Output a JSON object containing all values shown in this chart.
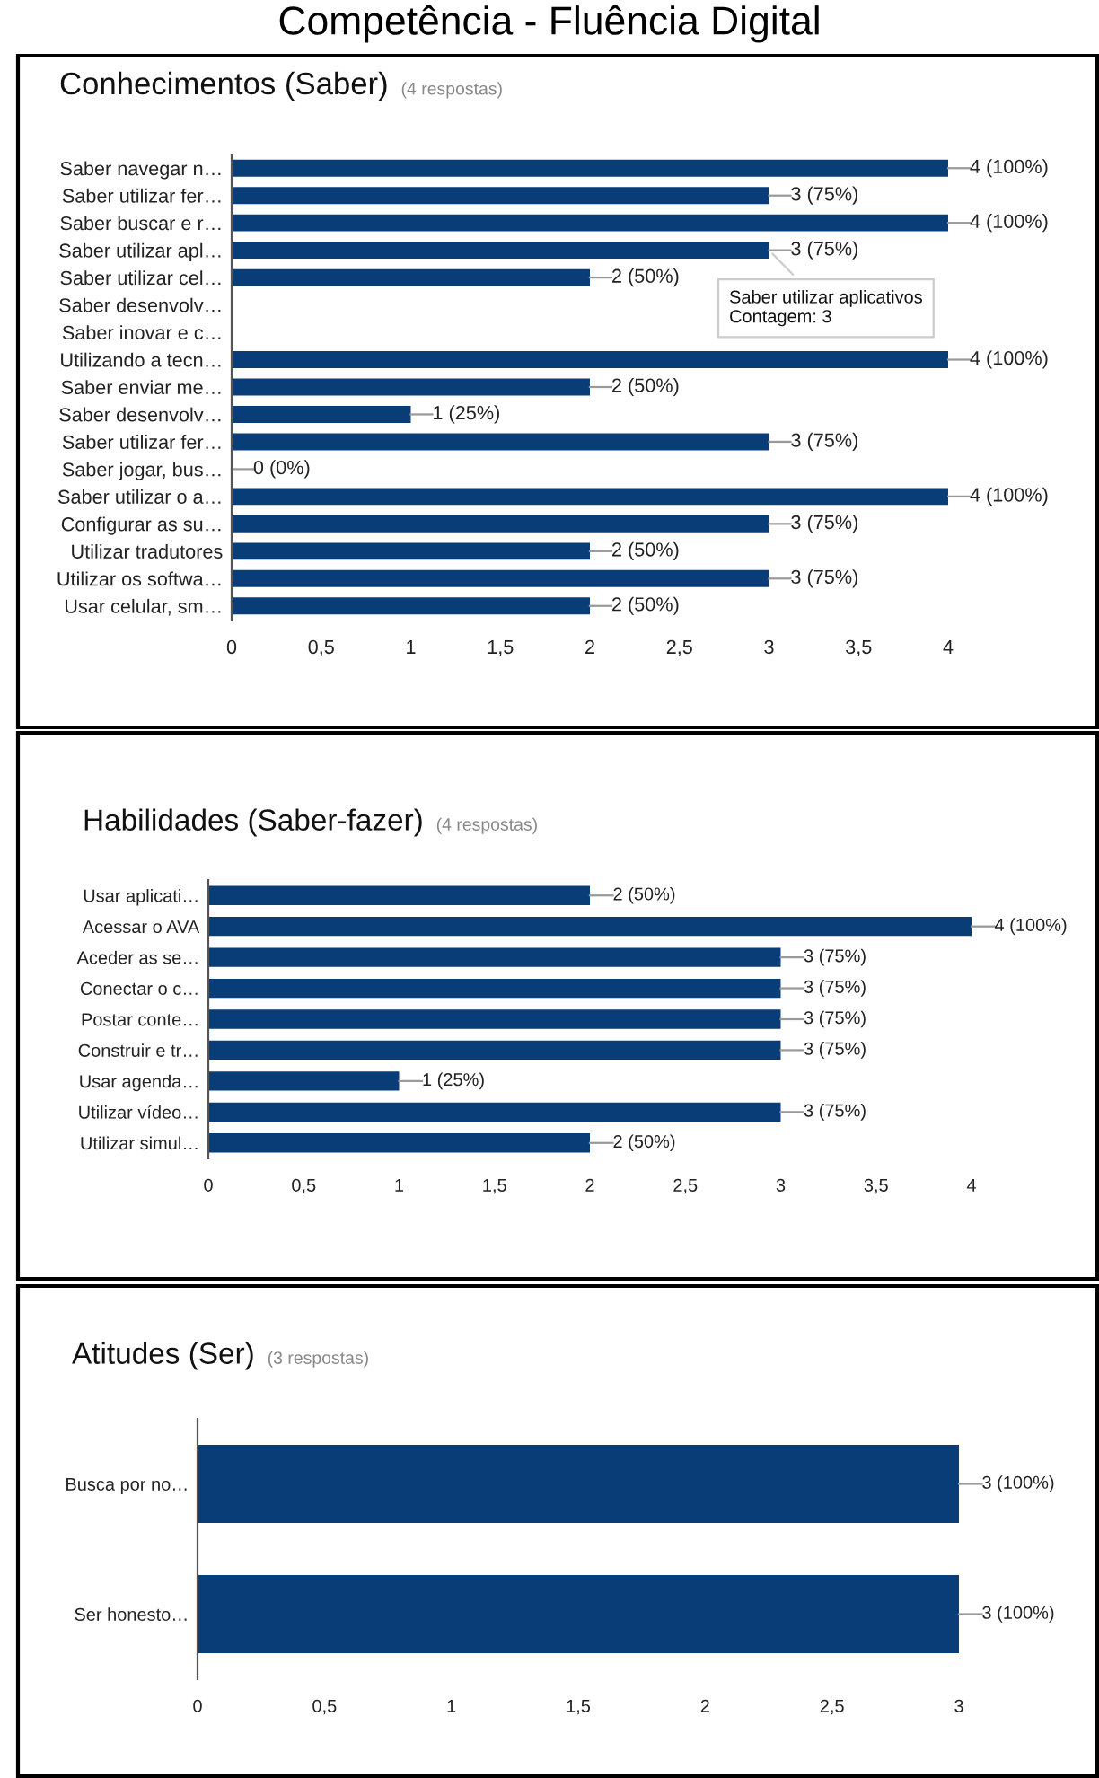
{
  "chart_data": [
    {
      "type": "bar",
      "orientation": "horizontal",
      "title": "Conhecimentos (Saber)",
      "subtitle": "(4 respostas)",
      "categories": [
        "Saber navegar n…",
        "Saber utilizar fer…",
        "Saber buscar e r…",
        "Saber utilizar apl…",
        "Saber utilizar cel…",
        "Saber desenvolv…",
        "Saber inovar e c…",
        "Utilizando a tecn…",
        "Saber enviar me…",
        "Saber desenvolv…",
        "Saber utilizar fer…",
        "Saber jogar, bus…",
        "Saber utilizar o a…",
        "Configurar as su…",
        "Utilizar tradutores",
        "Utilizar os softwa…",
        "Usar celular, sm…"
      ],
      "values": [
        4,
        3,
        4,
        3,
        2,
        null,
        null,
        4,
        2,
        1,
        3,
        0,
        4,
        3,
        2,
        3,
        2
      ],
      "value_labels": [
        "4 (100%)",
        "3 (75%)",
        "4 (100%)",
        "3 (75%)",
        "2 (50%)",
        null,
        null,
        "4 (100%)",
        "2 (50%)",
        "1 (25%)",
        "3 (75%)",
        "0 (0%)",
        "4 (100%)",
        "3 (75%)",
        "2 (50%)",
        "3 (75%)",
        "2 (50%)"
      ],
      "color": "#083d77",
      "xlim": [
        0,
        4
      ],
      "xticks": [
        0,
        {
          "value": 0.5,
          "label": "0,5"
        },
        1,
        {
          "value": 1.5,
          "label": "1,5"
        },
        2,
        {
          "value": 2.5,
          "label": "2,5"
        },
        3,
        {
          "value": 3.5,
          "label": "3,5"
        },
        4
      ],
      "grid": false,
      "annotations": [
        "Competência - Fluência Digital",
        {
          "text": "Saber utilizar aplicativos\nContagem: 3",
          "x": 3,
          "y": "Saber utilizar apl…"
        }
      ]
    },
    {
      "type": "bar",
      "orientation": "horizontal",
      "title": "Habilidades (Saber-fazer)",
      "subtitle": "(4 respostas)",
      "categories": [
        "Usar aplicati…",
        "Acessar o AVA",
        "Aceder as se…",
        "Conectar o c…",
        "Postar conte…",
        "Construir e tr…",
        "Usar agenda…",
        "Utilizar vídeo…",
        "Utilizar simul…"
      ],
      "values": [
        2,
        4,
        3,
        3,
        3,
        3,
        1,
        3,
        2
      ],
      "value_labels": [
        "2 (50%)",
        "4 (100%)",
        "3 (75%)",
        "3 (75%)",
        "3 (75%)",
        "3 (75%)",
        "1 (25%)",
        "3 (75%)",
        "2 (50%)"
      ],
      "color": "#083d77",
      "xlim": [
        0,
        4
      ],
      "xticks": [
        0,
        {
          "value": 0.5,
          "label": "0,5"
        },
        1,
        {
          "value": 1.5,
          "label": "1,5"
        },
        2,
        {
          "value": 2.5,
          "label": "2,5"
        },
        3,
        {
          "value": 3.5,
          "label": "3,5"
        },
        4
      ],
      "grid": false
    },
    {
      "type": "bar",
      "orientation": "horizontal",
      "title": "Atitudes (Ser)",
      "subtitle": "(3 respostas)",
      "categories": [
        "Busca por no…",
        "Ser honesto…"
      ],
      "values": [
        3,
        3
      ],
      "value_labels": [
        "3 (100%)",
        "3 (100%)"
      ],
      "color": "#083d77",
      "xlim": [
        0,
        3
      ],
      "xticks": [
        0,
        {
          "value": 0.5,
          "label": "0,5"
        },
        1,
        {
          "value": 1.5,
          "label": "1,5"
        },
        2,
        {
          "value": 2.5,
          "label": "2,5"
        },
        3
      ],
      "grid": false
    }
  ]
}
